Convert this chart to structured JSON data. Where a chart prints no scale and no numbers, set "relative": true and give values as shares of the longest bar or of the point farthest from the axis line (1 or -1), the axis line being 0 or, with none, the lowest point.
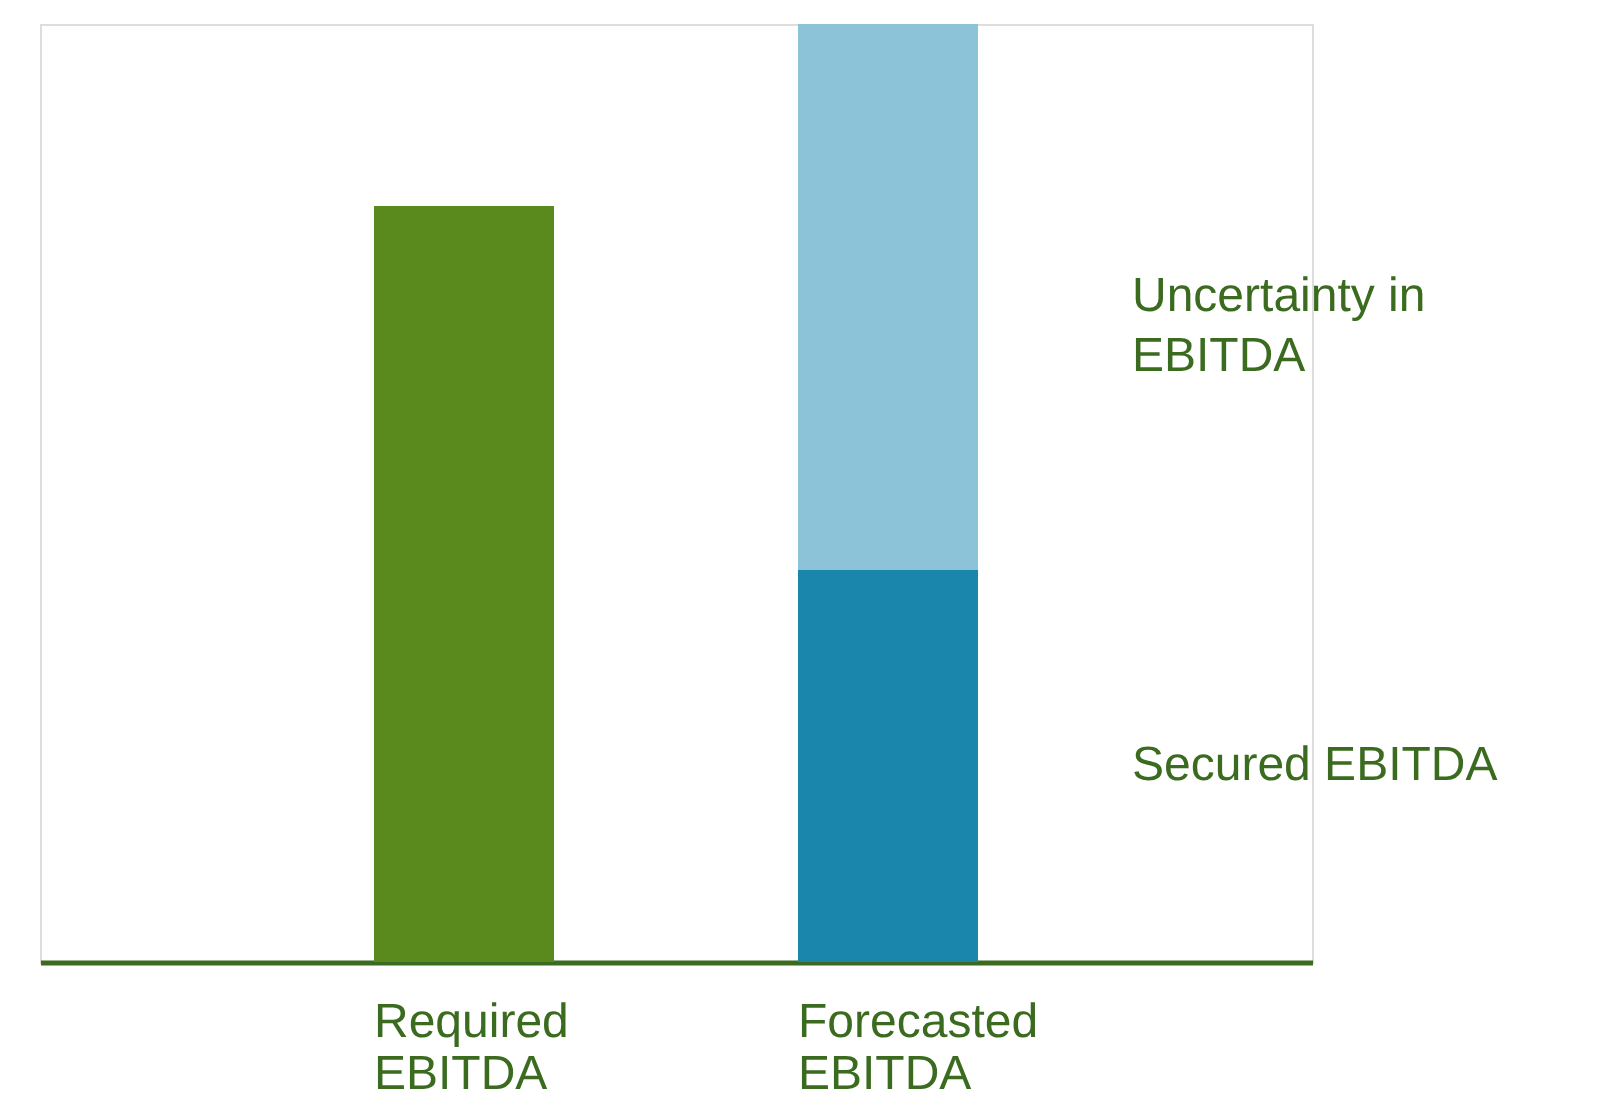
{
  "chart_data": {
    "type": "bar",
    "relative": true,
    "stacked": true,
    "legend": false,
    "grid": false,
    "categories": [
      "Required EBITDA",
      "Forecasted EBITDA"
    ],
    "series": [
      {
        "color": "#5a8a1e",
        "values": [
          0.806,
          null
        ]
      },
      {
        "name": "Secured EBITDA",
        "color": "#1a86ab",
        "values": [
          null,
          0.418
        ]
      },
      {
        "name": "Uncertainty in EBITDA",
        "color": "#8cc3d8",
        "values": [
          null,
          0.582
        ]
      }
    ]
  }
}
